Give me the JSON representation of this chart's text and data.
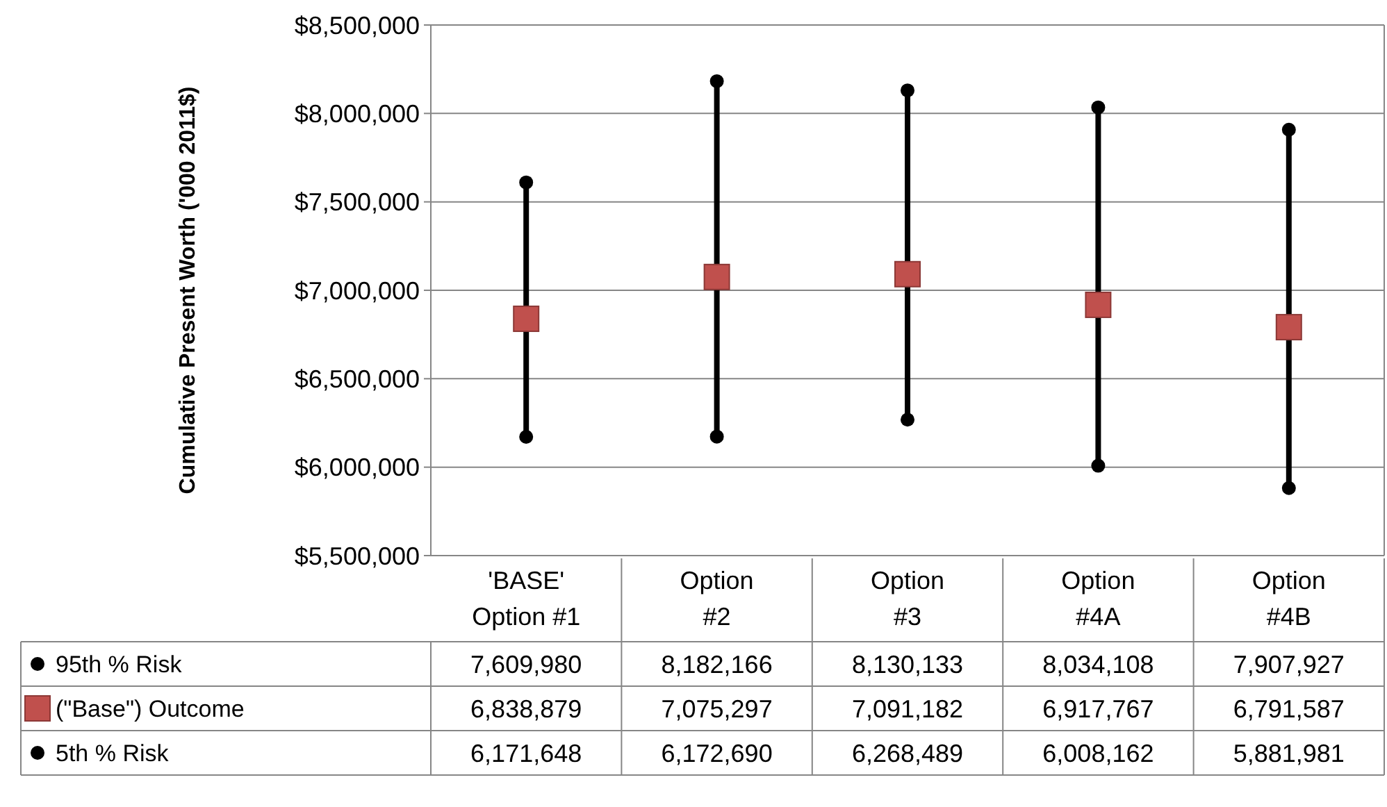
{
  "chart_data": {
    "type": "scatter",
    "ylabel": "Cumulative Present Worth ('000 2011$)",
    "categories": [
      "'BASE' Option #1",
      "Option #2",
      "Option #3",
      "Option #4A",
      "Option #4B"
    ],
    "ylim": [
      5500000,
      8500000
    ],
    "yticks": [
      {
        "value": 5500000,
        "label": "$5,500,000"
      },
      {
        "value": 6000000,
        "label": "$6,000,000"
      },
      {
        "value": 6500000,
        "label": "$6,500,000"
      },
      {
        "value": 7000000,
        "label": "$7,000,000"
      },
      {
        "value": 7500000,
        "label": "$7,500,000"
      },
      {
        "value": 8000000,
        "label": "$8,000,000"
      },
      {
        "value": 8500000,
        "label": "$8,500,000"
      }
    ],
    "grid": "y",
    "legend": "bottom left",
    "series": [
      {
        "name": "95th % Risk",
        "color": "#000000",
        "marker": "circle",
        "values": [
          7609980,
          8182166,
          8130133,
          8034108,
          7907927
        ],
        "value_labels": [
          "7,609,980",
          "8,182,166",
          "8,130,133",
          "8,034,108",
          "7,907,927"
        ]
      },
      {
        "name": "(\"Base\") Outcome",
        "color": "#c0504d",
        "marker": "square",
        "values": [
          6838879,
          7075297,
          7091182,
          6917767,
          6791587
        ],
        "value_labels": [
          "6,838,879",
          "7,075,297",
          "7,091,182",
          "6,917,767",
          "6,791,587"
        ]
      },
      {
        "name": "5th % Risk",
        "color": "#000000",
        "marker": "circle",
        "values": [
          6171648,
          6172690,
          6268489,
          6008162,
          5881981
        ],
        "value_labels": [
          "6,171,648",
          "6,172,690",
          "6,268,489",
          "6,008,162",
          "5,881,981"
        ]
      }
    ]
  }
}
